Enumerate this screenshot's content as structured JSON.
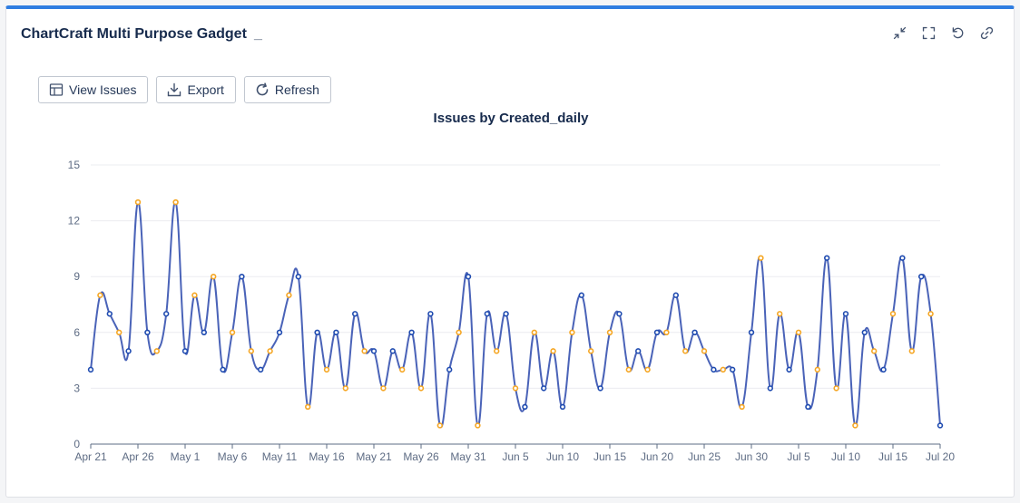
{
  "gadget": {
    "title": "ChartCraft Multi Purpose Gadget",
    "title_ellipsis": "_",
    "header_icons": [
      "minimize-icon",
      "fullscreen-icon",
      "refresh-icon",
      "link-icon"
    ]
  },
  "toolbar": {
    "view_issues_label": "View Issues",
    "export_label": "Export",
    "refresh_label": "Refresh"
  },
  "colors": {
    "line": "#4a63b8",
    "accent_border": "#2f7de1",
    "point_palette": [
      "#1f4bb0",
      "#1e9e5a",
      "#e0463a",
      "#f5a623",
      "#5b3fb0",
      "#29b6d6",
      "#6b7280"
    ]
  },
  "chart_data": {
    "type": "line",
    "title": "Issues by Created_daily",
    "xlabel": "",
    "ylabel": "",
    "ylim": [
      0,
      15
    ],
    "yticks": [
      "0",
      "3",
      "6",
      "9",
      "12",
      "15"
    ],
    "x_tick_labels": [
      "Apr 21",
      "Apr 26",
      "May 1",
      "May 6",
      "May 11",
      "May 16",
      "May 21",
      "May 26",
      "May 31",
      "Jun 5",
      "Jun 10",
      "Jun 15",
      "Jun 20",
      "Jun 25",
      "Jun 30",
      "Jul 5",
      "Jul 10",
      "Jul 15",
      "Jul 20"
    ],
    "x_tick_every_days": 5,
    "start_date": "Apr 21",
    "grid": true,
    "values": [
      4,
      8,
      7,
      6,
      5,
      13,
      6,
      5,
      7,
      13,
      5,
      8,
      6,
      9,
      4,
      6,
      9,
      5,
      4,
      5,
      6,
      8,
      9,
      2,
      6,
      4,
      6,
      3,
      7,
      5,
      5,
      3,
      5,
      4,
      6,
      3,
      7,
      1,
      4,
      6,
      9,
      1,
      7,
      5,
      7,
      3,
      2,
      6,
      3,
      5,
      2,
      6,
      8,
      5,
      3,
      6,
      7,
      4,
      5,
      4,
      6,
      6,
      8,
      5,
      6,
      5,
      4,
      4,
      4,
      2,
      6,
      10,
      3,
      7,
      4,
      6,
      2,
      4,
      10,
      3,
      7,
      1,
      6,
      5,
      4,
      7,
      10,
      5,
      9,
      7,
      1
    ]
  }
}
